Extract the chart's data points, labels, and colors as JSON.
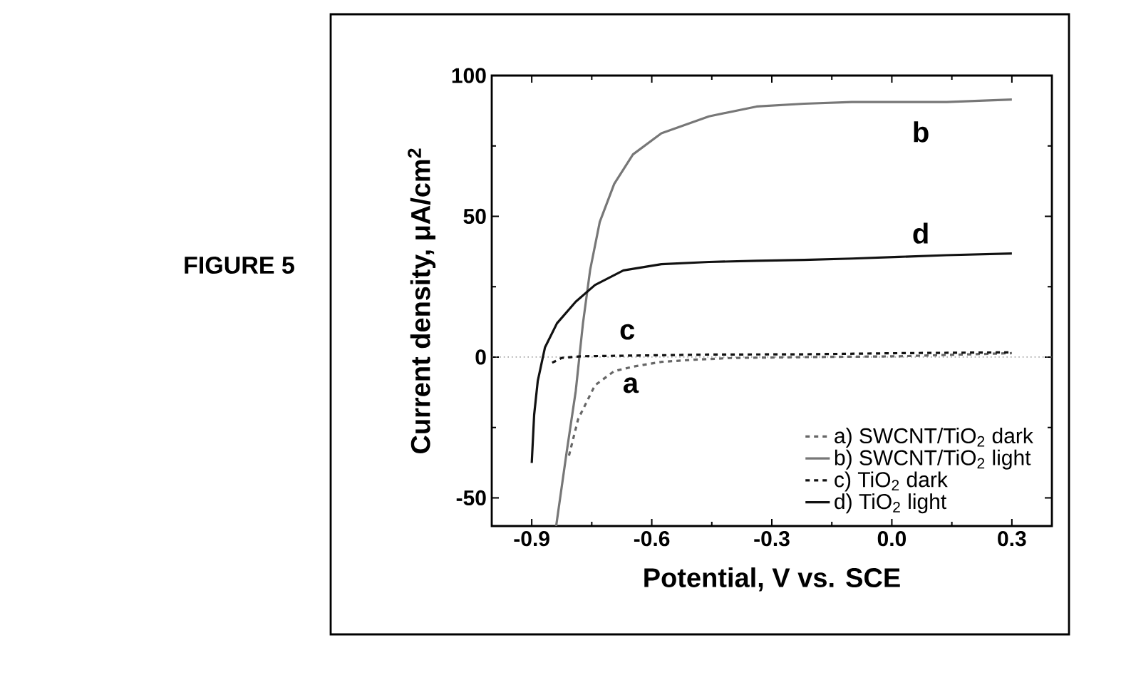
{
  "chart_data": {
    "type": "line",
    "xlabel": "Potential, V vs. SCE",
    "ylabel": "Current density, μA/cm$^{2}$",
    "xlim": [
      -1.0,
      0.4
    ],
    "ylim": [
      -60,
      100
    ],
    "xticks": [
      -0.9,
      -0.6,
      -0.3,
      {
        "value": 0,
        "label": "0.0"
      },
      0.3
    ],
    "yticks": [
      -50,
      0,
      50,
      100
    ],
    "legend": "bottom right",
    "grid": false,
    "ref_lines": [
      {
        "axis": "y",
        "value": 0,
        "color": "#888888",
        "line_style": "dotted"
      }
    ],
    "annotations": [
      "FIGURE 5",
      "a",
      "b",
      "c",
      "d"
    ],
    "series": [
      {
        "name": "a) SWCNT/TiO$_{2}$ dark",
        "color": "#666666",
        "line_style": "dashed",
        "x": [
          -0.807,
          -0.784,
          -0.742,
          -0.694,
          -0.647,
          -0.576,
          -0.493,
          -0.398,
          -0.219,
          0.018,
          0.3
        ],
        "values": [
          -35,
          -22,
          -10,
          -5,
          -3.4,
          -1.7,
          -0.9,
          -0.3,
          0,
          0.3,
          1.4
        ]
      },
      {
        "name": "b) SWCNT/TiO$_{2}$ light",
        "color": "#777777",
        "line_style": "solid",
        "x": [
          -0.839,
          -0.813,
          -0.79,
          -0.772,
          -0.754,
          -0.73,
          -0.694,
          -0.647,
          -0.576,
          -0.457,
          -0.338,
          -0.219,
          -0.1,
          0.018,
          0.137,
          0.3
        ],
        "values": [
          -60,
          -34,
          -12,
          12,
          31,
          48,
          61.5,
          72,
          79.5,
          85.5,
          89,
          90,
          90.6,
          90.6,
          90.6,
          91.5
        ]
      },
      {
        "name": "c) TiO$_{2}$ dark",
        "color": "#111111",
        "line_style": "dashed",
        "x": [
          -0.849,
          -0.825,
          -0.778,
          -0.671,
          -0.457,
          -0.219,
          0.018,
          0.3
        ],
        "values": [
          -2,
          -0.3,
          0.3,
          0.5,
          0.9,
          1,
          1.4,
          1.7
        ]
      },
      {
        "name": "d) TiO$_{2}$ light",
        "color": "#111111",
        "line_style": "solid",
        "x": [
          -0.9,
          -0.894,
          -0.885,
          -0.867,
          -0.837,
          -0.79,
          -0.742,
          -0.671,
          -0.576,
          -0.457,
          -0.338,
          -0.219,
          -0.1,
          0.018,
          0.137,
          0.3
        ],
        "values": [
          -37.6,
          -20.5,
          -8.5,
          3.4,
          12,
          19.7,
          25.6,
          30.8,
          33,
          33.8,
          34.2,
          34.5,
          35,
          35.6,
          36.2,
          36.8
        ]
      }
    ]
  }
}
